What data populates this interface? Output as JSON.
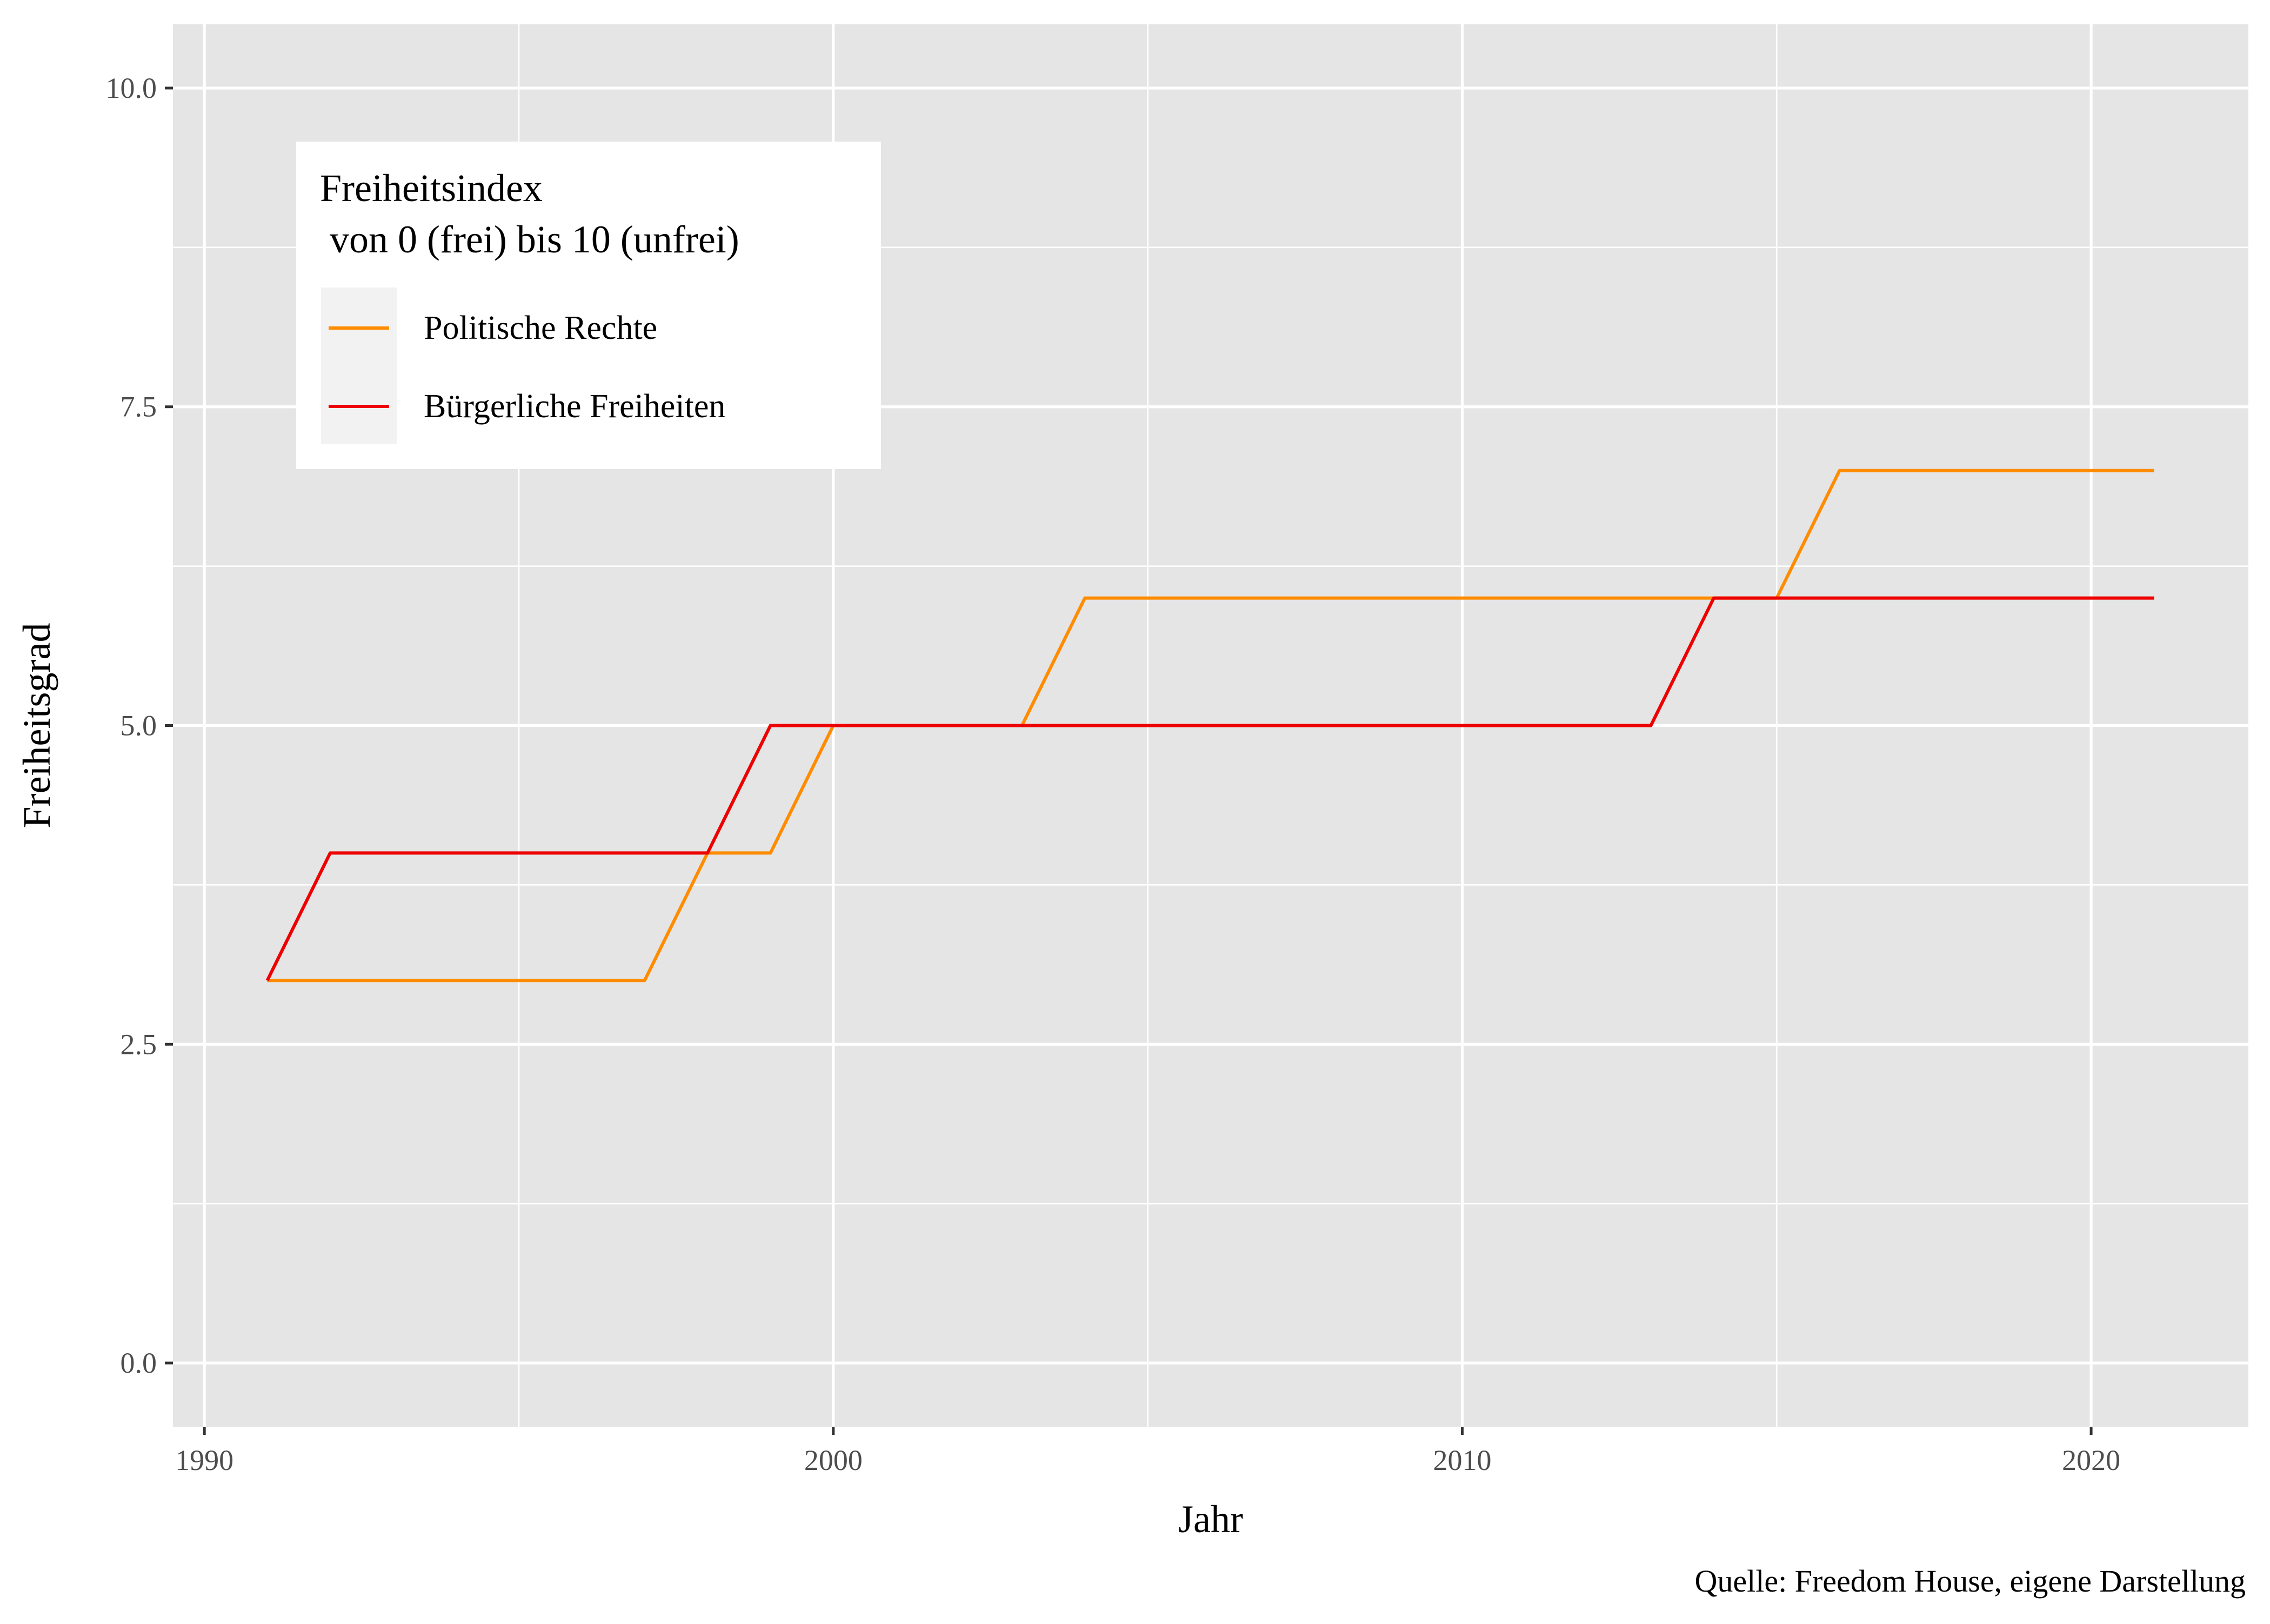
{
  "chart_data": {
    "type": "line",
    "title": "",
    "xlabel": "Jahr",
    "ylabel": "Freiheitsgrad",
    "caption": "Quelle: Freedom House, eigene Darstellung",
    "xlim": [
      1989.5,
      2022.5
    ],
    "ylim": [
      -0.5,
      10.5
    ],
    "x_ticks": [
      1990,
      2000,
      2010,
      2020
    ],
    "x_tick_labels": [
      "1990",
      "2000",
      "2010",
      "2020"
    ],
    "y_ticks": [
      0,
      2.5,
      5,
      7.5,
      10
    ],
    "y_tick_labels": [
      "0.0",
      "2.5",
      "5.0",
      "7.5",
      "10.0"
    ],
    "grid": true,
    "legend": {
      "title_line1": "Freiheitsindex",
      "title_line2": " von 0 (frei) bis 10 (unfrei)",
      "placement": "top-left"
    },
    "x": [
      1991,
      1992,
      1993,
      1994,
      1995,
      1996,
      1997,
      1998,
      1999,
      2000,
      2001,
      2002,
      2003,
      2004,
      2005,
      2006,
      2007,
      2008,
      2009,
      2010,
      2011,
      2012,
      2013,
      2014,
      2015,
      2016,
      2017,
      2018,
      2019,
      2020,
      2021
    ],
    "series": [
      {
        "name": "Politische Rechte",
        "color": "#FF8C00",
        "values": [
          3,
          3,
          3,
          3,
          3,
          3,
          3,
          4,
          4,
          5,
          5,
          5,
          5,
          6,
          6,
          6,
          6,
          6,
          6,
          6,
          6,
          6,
          6,
          6,
          6,
          7,
          7,
          7,
          7,
          7,
          7
        ]
      },
      {
        "name": "Bürgerliche Freiheiten",
        "color": "#EE0000",
        "values": [
          3,
          4,
          4,
          4,
          4,
          4,
          4,
          4,
          5,
          5,
          5,
          5,
          5,
          5,
          5,
          5,
          5,
          5,
          5,
          5,
          5,
          5,
          5,
          6,
          6,
          6,
          6,
          6,
          6,
          6,
          6
        ]
      }
    ]
  },
  "colors": {
    "panel_background": "#E5E5E5",
    "grid_line": "#FFFFFF",
    "text": "#000000",
    "tick_text": "#4D4D4D"
  }
}
